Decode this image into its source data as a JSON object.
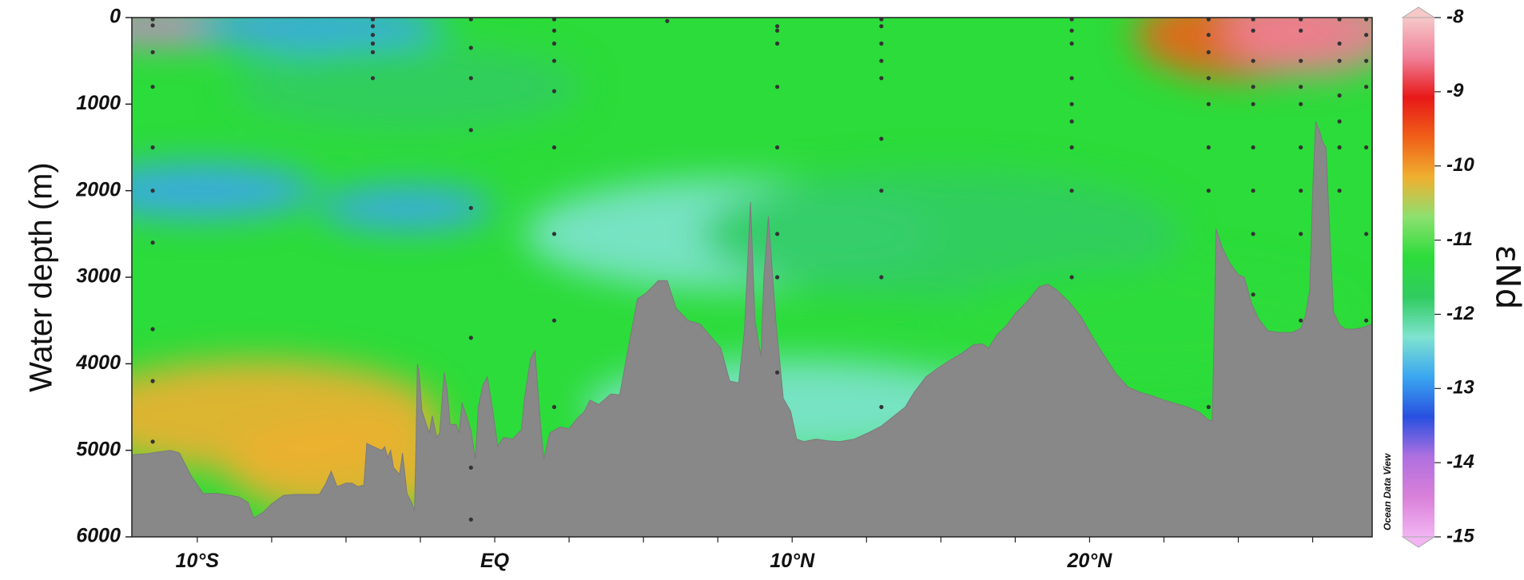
{
  "chart_data": {
    "type": "heatmap",
    "ylabel": "Water depth (m)",
    "ylim": [
      0,
      6000
    ],
    "y_ticks": [
      "0",
      "1000",
      "2000",
      "3000",
      "4000",
      "5000",
      "6000"
    ],
    "y_tick_values": [
      0,
      1000,
      2000,
      3000,
      4000,
      5000,
      6000
    ],
    "xlim": [
      -12.2,
      29.5
    ],
    "x_ticks": [
      "10°S",
      "EQ",
      "10°N",
      "20°N"
    ],
    "x_tick_values": [
      -10,
      0,
      10,
      20
    ],
    "colorbar": {
      "label": "εNd",
      "range": [
        -15,
        -8
      ],
      "ticks": [
        "-8",
        "-9",
        "-10",
        "-11",
        "-12",
        "-13",
        "-14",
        "-15"
      ],
      "tick_values": [
        -8,
        -9,
        -10,
        -11,
        -12,
        -13,
        -14,
        -15
      ],
      "colors": [
        "#f2b5f2",
        "#d980d9",
        "#b070e0",
        "#2850e0",
        "#3aa6f0",
        "#7fe3d0",
        "#30cc60",
        "#2cdc3a",
        "#8ce070",
        "#f0b030",
        "#f06018",
        "#e81818",
        "#f08098",
        "#f6c8c8"
      ]
    },
    "field": [
      {
        "lat": -11,
        "depth": 100,
        "value": -14.2
      },
      {
        "lat": -6,
        "depth": 100,
        "value": -12.8
      },
      {
        "lat": 25,
        "depth": 200,
        "value": -9.6
      },
      {
        "lat": 27.5,
        "depth": 150,
        "value": -8.8
      },
      {
        "lat": -3,
        "depth": 800,
        "value": -11.6
      },
      {
        "lat": -10,
        "depth": 2000,
        "value": -12.8
      },
      {
        "lat": -3,
        "depth": 2200,
        "value": -12.8
      },
      {
        "lat": 8,
        "depth": 2500,
        "value": -12.1
      },
      {
        "lat": 15,
        "depth": 2500,
        "value": -11.8
      },
      {
        "lat": -8,
        "depth": 4600,
        "value": -10.3
      },
      {
        "lat": -5,
        "depth": 5200,
        "value": -10.0
      },
      {
        "lat": 10,
        "depth": 4500,
        "value": -12.2
      },
      {
        "lat": 22,
        "depth": 3500,
        "value": -11.5
      }
    ],
    "stations": [
      {
        "lat": -11.5,
        "depths": [
          20,
          90,
          400,
          800,
          1500,
          2000,
          2600,
          3600,
          4200,
          4900
        ]
      },
      {
        "lat": -4.1,
        "depths": [
          20,
          100,
          200,
          300,
          400,
          700
        ]
      },
      {
        "lat": -0.8,
        "depths": [
          20,
          350,
          700,
          1300,
          2200,
          3700,
          5200,
          5800
        ]
      },
      {
        "lat": 2.0,
        "depths": [
          20,
          150,
          300,
          500,
          850,
          1500,
          2500,
          3500,
          4500
        ]
      },
      {
        "lat": 5.8,
        "depths": [
          40
        ]
      },
      {
        "lat": 9.5,
        "depths": [
          100,
          150,
          300,
          800,
          1500,
          2500,
          3000,
          4100
        ]
      },
      {
        "lat": 13.0,
        "depths": [
          20,
          100,
          300,
          500,
          700,
          1400,
          2000,
          3000,
          4500
        ]
      },
      {
        "lat": 19.4,
        "depths": [
          20,
          150,
          300,
          700,
          1000,
          1200,
          1500,
          2000,
          3000
        ]
      },
      {
        "lat": 24.0,
        "depths": [
          20,
          200,
          400,
          700,
          1000,
          1500,
          2000,
          4500
        ]
      },
      {
        "lat": 25.5,
        "depths": [
          20,
          150,
          500,
          800,
          1000,
          1500,
          2000,
          2500,
          3200
        ]
      },
      {
        "lat": 27.1,
        "depths": [
          20,
          150,
          500,
          800,
          1000,
          1500,
          2000,
          2500,
          3500
        ]
      },
      {
        "lat": 28.4,
        "depths": [
          20,
          300,
          500,
          900,
          1200,
          1500,
          2000
        ]
      },
      {
        "lat": 29.3,
        "depths": [
          20,
          200,
          500,
          800,
          1500,
          2500,
          3500
        ]
      }
    ],
    "bathymetry": [
      [
        -12.2,
        5050
      ],
      [
        -11.7,
        5040
      ],
      [
        -11.3,
        5020
      ],
      [
        -10.9,
        5000
      ],
      [
        -10.6,
        5030
      ],
      [
        -10.2,
        5300
      ],
      [
        -9.8,
        5500
      ],
      [
        -9.3,
        5500
      ],
      [
        -8.9,
        5520
      ],
      [
        -8.6,
        5540
      ],
      [
        -8.3,
        5600
      ],
      [
        -8.1,
        5780
      ],
      [
        -7.8,
        5720
      ],
      [
        -7.5,
        5620
      ],
      [
        -7.1,
        5520
      ],
      [
        -6.7,
        5510
      ],
      [
        -6.3,
        5510
      ],
      [
        -5.9,
        5510
      ],
      [
        -5.7,
        5400
      ],
      [
        -5.5,
        5240
      ],
      [
        -5.3,
        5420
      ],
      [
        -5.0,
        5380
      ],
      [
        -4.8,
        5380
      ],
      [
        -4.6,
        5420
      ],
      [
        -4.4,
        5400
      ],
      [
        -4.3,
        4920
      ],
      [
        -4.0,
        4970
      ],
      [
        -3.8,
        5000
      ],
      [
        -3.7,
        4960
      ],
      [
        -3.6,
        5080
      ],
      [
        -3.5,
        5000
      ],
      [
        -3.4,
        5200
      ],
      [
        -3.2,
        5280
      ],
      [
        -3.1,
        5030
      ],
      [
        -2.95,
        5500
      ],
      [
        -2.8,
        5600
      ],
      [
        -2.7,
        5700
      ],
      [
        -2.65,
        5000
      ],
      [
        -2.6,
        4000
      ],
      [
        -2.55,
        4080
      ],
      [
        -2.45,
        4540
      ],
      [
        -2.3,
        4700
      ],
      [
        -2.2,
        4800
      ],
      [
        -2.1,
        4600
      ],
      [
        -1.95,
        4850
      ],
      [
        -1.85,
        4800
      ],
      [
        -1.7,
        4100
      ],
      [
        -1.6,
        4300
      ],
      [
        -1.5,
        4700
      ],
      [
        -1.3,
        4700
      ],
      [
        -1.2,
        4800
      ],
      [
        -1.1,
        4450
      ],
      [
        -0.95,
        4600
      ],
      [
        -0.8,
        4770
      ],
      [
        -0.65,
        5100
      ],
      [
        -0.55,
        4500
      ],
      [
        -0.4,
        4250
      ],
      [
        -0.25,
        4150
      ],
      [
        -0.1,
        4460
      ],
      [
        0.1,
        4950
      ],
      [
        0.3,
        4850
      ],
      [
        0.6,
        4870
      ],
      [
        0.9,
        4760
      ],
      [
        1.0,
        4400
      ],
      [
        1.2,
        3950
      ],
      [
        1.35,
        3850
      ],
      [
        1.55,
        4750
      ],
      [
        1.65,
        5100
      ],
      [
        1.85,
        4800
      ],
      [
        2.2,
        4730
      ],
      [
        2.5,
        4750
      ],
      [
        2.8,
        4620
      ],
      [
        3.0,
        4560
      ],
      [
        3.2,
        4420
      ],
      [
        3.5,
        4470
      ],
      [
        3.9,
        4350
      ],
      [
        4.2,
        4360
      ],
      [
        4.5,
        3800
      ],
      [
        4.8,
        3250
      ],
      [
        5.1,
        3180
      ],
      [
        5.5,
        3040
      ],
      [
        5.8,
        3040
      ],
      [
        6.1,
        3360
      ],
      [
        6.5,
        3500
      ],
      [
        6.9,
        3540
      ],
      [
        7.3,
        3700
      ],
      [
        7.6,
        3820
      ],
      [
        7.9,
        4200
      ],
      [
        8.2,
        4220
      ],
      [
        8.4,
        3600
      ],
      [
        8.6,
        2130
      ],
      [
        8.75,
        3500
      ],
      [
        8.95,
        3910
      ],
      [
        9.05,
        3000
      ],
      [
        9.2,
        2300
      ],
      [
        9.45,
        3500
      ],
      [
        9.7,
        4400
      ],
      [
        9.95,
        4550
      ],
      [
        10.15,
        4870
      ],
      [
        10.4,
        4900
      ],
      [
        10.8,
        4870
      ],
      [
        11.2,
        4890
      ],
      [
        11.6,
        4900
      ],
      [
        12.1,
        4870
      ],
      [
        12.6,
        4790
      ],
      [
        13.0,
        4720
      ],
      [
        13.4,
        4610
      ],
      [
        13.8,
        4500
      ],
      [
        14.1,
        4330
      ],
      [
        14.5,
        4150
      ],
      [
        14.9,
        4050
      ],
      [
        15.3,
        3960
      ],
      [
        15.7,
        3880
      ],
      [
        16.1,
        3780
      ],
      [
        16.4,
        3770
      ],
      [
        16.6,
        3820
      ],
      [
        16.9,
        3660
      ],
      [
        17.2,
        3560
      ],
      [
        17.5,
        3420
      ],
      [
        17.9,
        3280
      ],
      [
        18.3,
        3110
      ],
      [
        18.6,
        3080
      ],
      [
        18.9,
        3150
      ],
      [
        19.3,
        3280
      ],
      [
        19.7,
        3450
      ],
      [
        20.1,
        3690
      ],
      [
        20.5,
        3910
      ],
      [
        20.9,
        4120
      ],
      [
        21.3,
        4270
      ],
      [
        21.7,
        4330
      ],
      [
        22.1,
        4370
      ],
      [
        22.5,
        4420
      ],
      [
        22.9,
        4460
      ],
      [
        23.3,
        4500
      ],
      [
        23.7,
        4560
      ],
      [
        24.0,
        4650
      ],
      [
        24.12,
        4660
      ],
      [
        24.2,
        3500
      ],
      [
        24.25,
        2440
      ],
      [
        24.45,
        2650
      ],
      [
        24.7,
        2830
      ],
      [
        25.0,
        2970
      ],
      [
        25.2,
        3000
      ],
      [
        25.45,
        3310
      ],
      [
        25.7,
        3490
      ],
      [
        26.0,
        3620
      ],
      [
        26.4,
        3640
      ],
      [
        26.8,
        3640
      ],
      [
        27.1,
        3590
      ],
      [
        27.25,
        3450
      ],
      [
        27.4,
        3150
      ],
      [
        27.5,
        2000
      ],
      [
        27.6,
        1200
      ],
      [
        27.72,
        1300
      ],
      [
        27.85,
        1450
      ],
      [
        27.95,
        1500
      ],
      [
        28.05,
        2300
      ],
      [
        28.2,
        3400
      ],
      [
        28.4,
        3550
      ],
      [
        28.6,
        3600
      ],
      [
        28.9,
        3600
      ],
      [
        29.2,
        3580
      ],
      [
        29.5,
        3540
      ]
    ]
  },
  "watermark": "Ocean Data View"
}
